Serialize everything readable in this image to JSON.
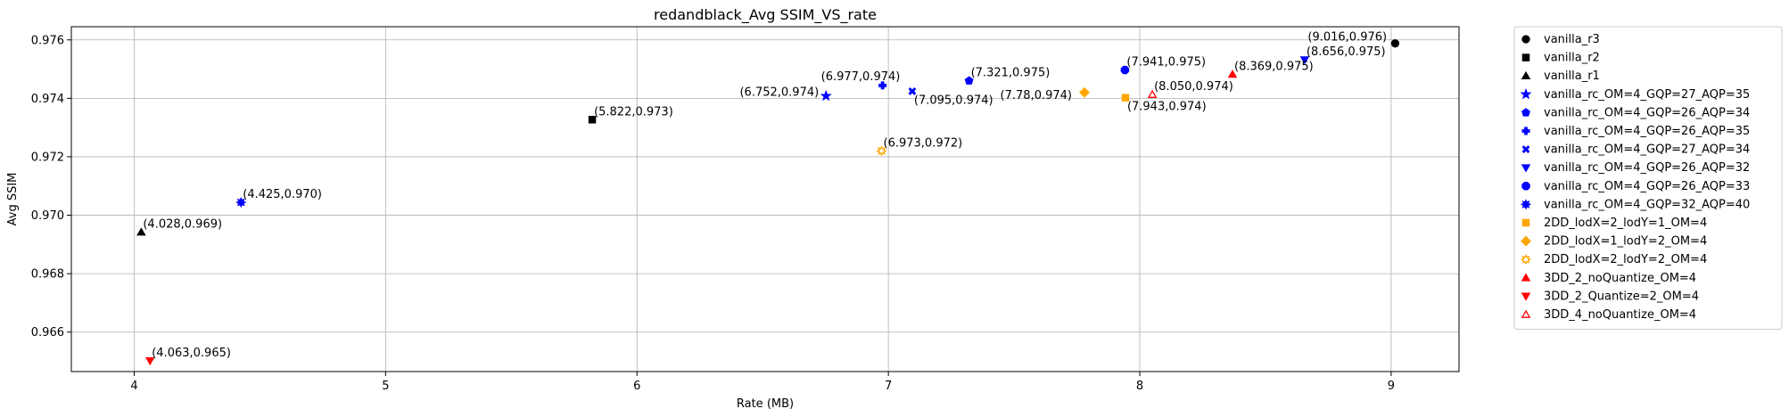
{
  "chart_data": {
    "type": "scatter",
    "title": "redandblack_Avg SSIM_VS_rate",
    "xlabel": "Rate (MB)",
    "ylabel": "Avg SSIM",
    "xlim": [
      3.75,
      9.27
    ],
    "ylim": [
      0.96465,
      0.97645
    ],
    "x_ticks": [
      4,
      5,
      6,
      7,
      8,
      9
    ],
    "y_ticks": [
      0.966,
      0.968,
      0.97,
      0.972,
      0.974,
      0.976
    ],
    "x_tick_labels": [
      "4",
      "5",
      "6",
      "7",
      "8",
      "9"
    ],
    "y_tick_labels": [
      "0.966",
      "0.968",
      "0.970",
      "0.972",
      "0.974",
      "0.976"
    ],
    "grid": true,
    "legend_position": "outside-right",
    "series": [
      {
        "name": "vanilla_r3",
        "marker": "circle",
        "color": "#000000",
        "filled": true,
        "x": 9.016,
        "y": 0.97588,
        "label": "(9.016,0.976)"
      },
      {
        "name": "vanilla_r2",
        "marker": "square",
        "color": "#000000",
        "filled": true,
        "x": 5.822,
        "y": 0.97327,
        "label": "(5.822,0.973)"
      },
      {
        "name": "vanilla_r1",
        "marker": "triangle-up",
        "color": "#000000",
        "filled": true,
        "x": 4.028,
        "y": 0.96942,
        "label": "(4.028,0.969)"
      },
      {
        "name": "vanilla_rc_OM=4_GQP=27_AQP=35",
        "marker": "star",
        "color": "#0000ff",
        "filled": true,
        "x": 6.752,
        "y": 0.97408,
        "label": "(6.752,0.974)"
      },
      {
        "name": "vanilla_rc_OM=4_GQP=26_AQP=34",
        "marker": "pentagon",
        "color": "#0000ff",
        "filled": true,
        "x": 7.321,
        "y": 0.9746,
        "label": "(7.321,0.975)"
      },
      {
        "name": "vanilla_rc_OM=4_GQP=26_AQP=35",
        "marker": "plus",
        "color": "#0000ff",
        "filled": true,
        "x": 6.977,
        "y": 0.97444,
        "label": "(6.977,0.974)"
      },
      {
        "name": "vanilla_rc_OM=4_GQP=27_AQP=34",
        "marker": "x",
        "color": "#0000ff",
        "filled": true,
        "x": 7.095,
        "y": 0.97424,
        "label": "(7.095,0.974)"
      },
      {
        "name": "vanilla_rc_OM=4_GQP=26_AQP=32",
        "marker": "triangle-down",
        "color": "#0000ff",
        "filled": true,
        "x": 8.656,
        "y": 0.97532,
        "label": "(8.656,0.975)"
      },
      {
        "name": "vanilla_rc_OM=4_GQP=26_AQP=33",
        "marker": "octagon",
        "color": "#0000ff",
        "filled": true,
        "x": 7.941,
        "y": 0.97497,
        "label": "(7.941,0.975)"
      },
      {
        "name": "vanilla_rc_OM=4_GQP=32_AQP=40",
        "marker": "sun",
        "color": "#0000ff",
        "filled": true,
        "x": 4.425,
        "y": 0.97044,
        "label": "(4.425,0.970)"
      },
      {
        "name": "2DD_lodX=2_lodY=1_OM=4",
        "marker": "square",
        "color": "#ffa500",
        "filled": true,
        "x": 7.943,
        "y": 0.97402,
        "label": "(7.943,0.974)"
      },
      {
        "name": "2DD_lodX=1_lodY=2_OM=4",
        "marker": "diamond",
        "color": "#ffa500",
        "filled": true,
        "x": 7.78,
        "y": 0.9742,
        "label": "(7.78,0.974)"
      },
      {
        "name": "2DD_lodX=2_lodY=2_OM=4",
        "marker": "sun",
        "color": "#ffa500",
        "filled": false,
        "x": 6.973,
        "y": 0.9722,
        "label": "(6.973,0.972)"
      },
      {
        "name": "3DD_2_noQuantize_OM=4",
        "marker": "triangle-up",
        "color": "#ff0000",
        "filled": true,
        "x": 8.369,
        "y": 0.97482,
        "label": "(8.369,0.975)"
      },
      {
        "name": "3DD_2_Quantize=2_OM=4",
        "marker": "triangle-down",
        "color": "#ff0000",
        "filled": true,
        "x": 4.063,
        "y": 0.96502,
        "label": "(4.063,0.965)"
      },
      {
        "name": "3DD_4_noQuantize_OM=4",
        "marker": "triangle-up",
        "color": "#ff0000",
        "filled": false,
        "x": 8.05,
        "y": 0.97413,
        "label": "(8.050,0.974)"
      }
    ]
  }
}
